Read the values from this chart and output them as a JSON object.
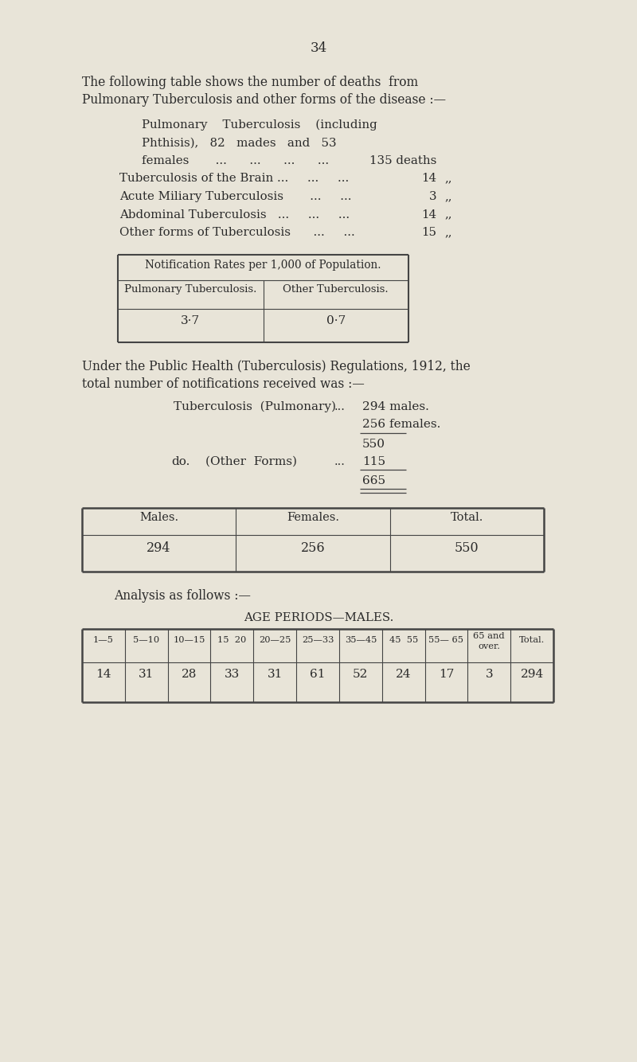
{
  "bg_color": "#e8e4d8",
  "text_color": "#2a2a2a",
  "page_number": "34",
  "notif_table_title": "Notification Rates per 1,000 of Population.",
  "notif_col1_header": "Pulmonary Tuberculosis.",
  "notif_col2_header": "Other Tuberculosis.",
  "notif_col1_value": "3·7",
  "notif_col2_value": "0·7",
  "mf_table_headers": [
    "Males.",
    "Females.",
    "Total."
  ],
  "mf_table_values": [
    "294",
    "256",
    "550"
  ],
  "analysis_text": "Analysis as follows :—",
  "age_table_title": "AGE PERIODS—MALES.",
  "age_headers": [
    "1—5",
    "5—10",
    "10—15",
    "15  20",
    "20—25",
    "25—33",
    "35—45",
    "45  55",
    "55— 65",
    "65 and\nover.",
    "Total."
  ],
  "age_values": [
    "14",
    "31",
    "28",
    "33",
    "31",
    "61",
    "52",
    "24",
    "17",
    "3",
    "294"
  ]
}
